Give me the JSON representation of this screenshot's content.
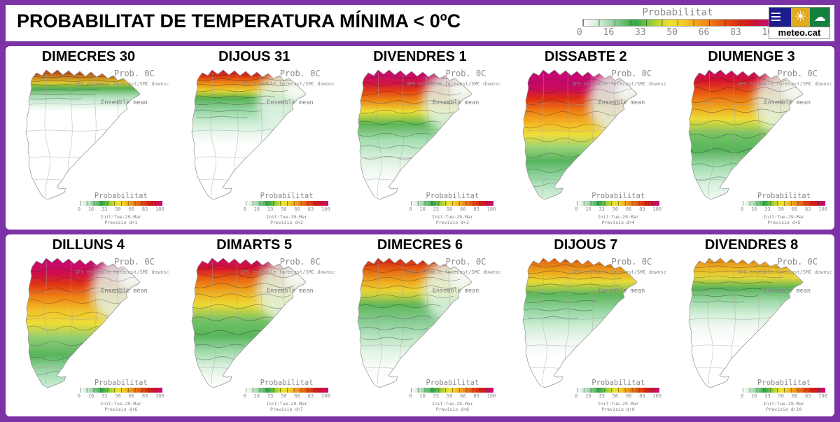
{
  "header": {
    "title": "PROBABILITAT DE TEMPERATURA MÍNIMA < 0ºC",
    "colorbar": {
      "label": "Probabilitat",
      "ticks": [
        "0",
        "16",
        "33",
        "50",
        "66",
        "83",
        "100"
      ]
    },
    "logo": {
      "text": "meteo.cat"
    }
  },
  "panel_common": {
    "prob_label": "Prob. 0C",
    "model_label": "GFS ensemble forecast/SMC downsc",
    "mean_label": "Ensemble mean",
    "cbar_label": "Probabilitat",
    "cbar_ticks": [
      "0",
      "16",
      "33",
      "50",
      "66",
      "83",
      "100"
    ],
    "init_label": "Init:Tue-29-Mar"
  },
  "colors": {
    "frame_purple": "#7c33a5",
    "magenta_max": "#c4087c",
    "red": "#d31a1a",
    "orange": "#ee7d14",
    "yellow": "#eee22e",
    "green": "#33a94a",
    "pale_green": "#c2e7ca",
    "white_min": "#ffffff"
  },
  "rows": [
    {
      "panels": [
        {
          "title": "DIMECRES 30",
          "previsio_label": "Previsio d+1",
          "contour_extent": 0.3,
          "ne_light": false,
          "gradient": [
            [
              "0",
              "#bb3315"
            ],
            [
              "0.06",
              "#cc8822"
            ],
            [
              "0.10",
              "#ddc82e"
            ],
            [
              "0.14",
              "#55b050"
            ],
            [
              "0.20",
              "#a8ddb4"
            ],
            [
              "0.27",
              "#e4f4e7"
            ],
            [
              "0.32",
              "#ffffff"
            ],
            [
              "1",
              "#ffffff"
            ]
          ]
        },
        {
          "title": "DIJOUS 31",
          "previsio_label": "Previsio d+2",
          "contour_extent": 0.45,
          "ne_light": true,
          "gradient": [
            [
              "0",
              "#c81a3a"
            ],
            [
              "0.05",
              "#dd3912"
            ],
            [
              "0.10",
              "#ee8814"
            ],
            [
              "0.16",
              "#e8d42f"
            ],
            [
              "0.22",
              "#55b251"
            ],
            [
              "0.30",
              "#8fd39d"
            ],
            [
              "0.40",
              "#c8ecd0"
            ],
            [
              "0.50",
              "#eef8f0"
            ],
            [
              "0.58",
              "#ffffff"
            ],
            [
              "1",
              "#ffffff"
            ]
          ]
        },
        {
          "title": "DIVENDRES 1",
          "previsio_label": "Previsio d+3",
          "contour_extent": 0.78,
          "ne_light": true,
          "gradient": [
            [
              "0",
              "#c4087c"
            ],
            [
              "0.10",
              "#d01345"
            ],
            [
              "0.16",
              "#e23d12"
            ],
            [
              "0.24",
              "#ef8a13"
            ],
            [
              "0.32",
              "#eedd36"
            ],
            [
              "0.42",
              "#5ab655"
            ],
            [
              "0.54",
              "#a5deb1"
            ],
            [
              "0.68",
              "#d9f1dd"
            ],
            [
              "0.80",
              "#f4faf5"
            ],
            [
              "0.90",
              "#ffffff"
            ],
            [
              "1",
              "#ffffff"
            ]
          ]
        },
        {
          "title": "DISSABTE 2",
          "previsio_label": "Previsio d+4",
          "contour_extent": 1.0,
          "ne_light": true,
          "gradient": [
            [
              "0",
              "#c4087c"
            ],
            [
              "0.14",
              "#c9095f"
            ],
            [
              "0.22",
              "#dd2c15"
            ],
            [
              "0.32",
              "#f08012"
            ],
            [
              "0.42",
              "#f3bc26"
            ],
            [
              "0.50",
              "#eede38"
            ],
            [
              "0.60",
              "#9ad277"
            ],
            [
              "0.70",
              "#55b45b"
            ],
            [
              "0.82",
              "#8fd49d"
            ],
            [
              "0.92",
              "#bfe8c9"
            ],
            [
              "1",
              "#d8f1dc"
            ]
          ]
        },
        {
          "title": "DIUMENGE 3",
          "previsio_label": "Previsio d+5",
          "contour_extent": 0.95,
          "ne_light": true,
          "gradient": [
            [
              "0",
              "#c7096e"
            ],
            [
              "0.08",
              "#d5122f"
            ],
            [
              "0.18",
              "#e85c10"
            ],
            [
              "0.28",
              "#f0a01b"
            ],
            [
              "0.38",
              "#eedc36"
            ],
            [
              "0.50",
              "#72c263"
            ],
            [
              "0.62",
              "#57b45c"
            ],
            [
              "0.75",
              "#a5deb1"
            ],
            [
              "0.88",
              "#d9f1dd"
            ],
            [
              "1",
              "#f0f9f1"
            ]
          ]
        }
      ]
    },
    {
      "panels": [
        {
          "title": "DILLUNS 4",
          "previsio_label": "Previsio d+6",
          "contour_extent": 1.0,
          "ne_light": true,
          "gradient": [
            [
              "0",
              "#c4087c"
            ],
            [
              "0.12",
              "#cf0e4a"
            ],
            [
              "0.20",
              "#e03414"
            ],
            [
              "0.30",
              "#ef8413"
            ],
            [
              "0.40",
              "#f2c029"
            ],
            [
              "0.50",
              "#eedd37"
            ],
            [
              "0.62",
              "#8ecd72"
            ],
            [
              "0.75",
              "#57b45c"
            ],
            [
              "0.87",
              "#9ed9aa"
            ],
            [
              "1",
              "#cceed4"
            ]
          ]
        },
        {
          "title": "DIMARTS 5",
          "previsio_label": "Previsio d+7",
          "contour_extent": 0.88,
          "ne_light": true,
          "gradient": [
            [
              "0",
              "#c7096e"
            ],
            [
              "0.08",
              "#d6142c"
            ],
            [
              "0.16",
              "#e96410"
            ],
            [
              "0.26",
              "#f0ac1e"
            ],
            [
              "0.36",
              "#ecda36"
            ],
            [
              "0.48",
              "#72c263"
            ],
            [
              "0.60",
              "#58b55c"
            ],
            [
              "0.72",
              "#a0dbac"
            ],
            [
              "0.84",
              "#dcf2e0"
            ],
            [
              "0.94",
              "#f6fbf7"
            ],
            [
              "1",
              "#ffffff"
            ]
          ]
        },
        {
          "title": "DIMECRES 6",
          "previsio_label": "Previsio d+8",
          "contour_extent": 0.72,
          "ne_light": true,
          "gradient": [
            [
              "0",
              "#cf1d15"
            ],
            [
              "0.08",
              "#e45911"
            ],
            [
              "0.18",
              "#eea81d"
            ],
            [
              "0.26",
              "#e9d835"
            ],
            [
              "0.36",
              "#60b85a"
            ],
            [
              "0.48",
              "#83ca8f"
            ],
            [
              "0.60",
              "#b5e3bf"
            ],
            [
              "0.72",
              "#e2f4e5"
            ],
            [
              "0.84",
              "#f9fcf9"
            ],
            [
              "1",
              "#ffffff"
            ]
          ]
        },
        {
          "title": "DIJOUS 7",
          "previsio_label": "Previsio d+9",
          "contour_extent": 0.55,
          "ne_light": false,
          "gradient": [
            [
              "0",
              "#e25a0f"
            ],
            [
              "0.10",
              "#eda01a"
            ],
            [
              "0.18",
              "#e9da37"
            ],
            [
              "0.28",
              "#5db75a"
            ],
            [
              "0.40",
              "#94d5a1"
            ],
            [
              "0.52",
              "#cdedd4"
            ],
            [
              "0.64",
              "#eef8f0"
            ],
            [
              "0.76",
              "#ffffff"
            ],
            [
              "1",
              "#ffffff"
            ]
          ]
        },
        {
          "title": "DIVENDRES 8",
          "previsio_label": "Previsio d+10",
          "contour_extent": 0.42,
          "ne_light": false,
          "gradient": [
            [
              "0",
              "#e87d13"
            ],
            [
              "0.08",
              "#ecb826"
            ],
            [
              "0.15",
              "#e5d83a"
            ],
            [
              "0.23",
              "#58b458"
            ],
            [
              "0.33",
              "#9cd9a8"
            ],
            [
              "0.44",
              "#d7f0db"
            ],
            [
              "0.55",
              "#f4faf5"
            ],
            [
              "0.65",
              "#ffffff"
            ],
            [
              "1",
              "#ffffff"
            ]
          ]
        }
      ]
    }
  ]
}
